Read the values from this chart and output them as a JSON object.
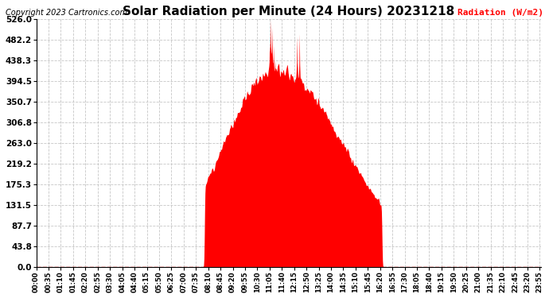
{
  "title": "Solar Radiation per Minute (24 Hours) 20231218",
  "ylabel": "Radiation (W/m2)",
  "copyright": "Copyright 2023 Cartronics.com",
  "bg_color": "#ffffff",
  "plot_bg_color": "#ffffff",
  "fill_color": "#ff0000",
  "line_color": "#ff0000",
  "grid_color": "#c0c0c0",
  "yticks": [
    0.0,
    43.8,
    87.7,
    131.5,
    175.3,
    219.2,
    263.0,
    306.8,
    350.7,
    394.5,
    438.3,
    482.2,
    526.0
  ],
  "ymin": 0.0,
  "ymax": 526.0,
  "total_minutes": 1440,
  "sunrise_minute": 480,
  "sunset_minute": 985,
  "tick_interval": 35
}
